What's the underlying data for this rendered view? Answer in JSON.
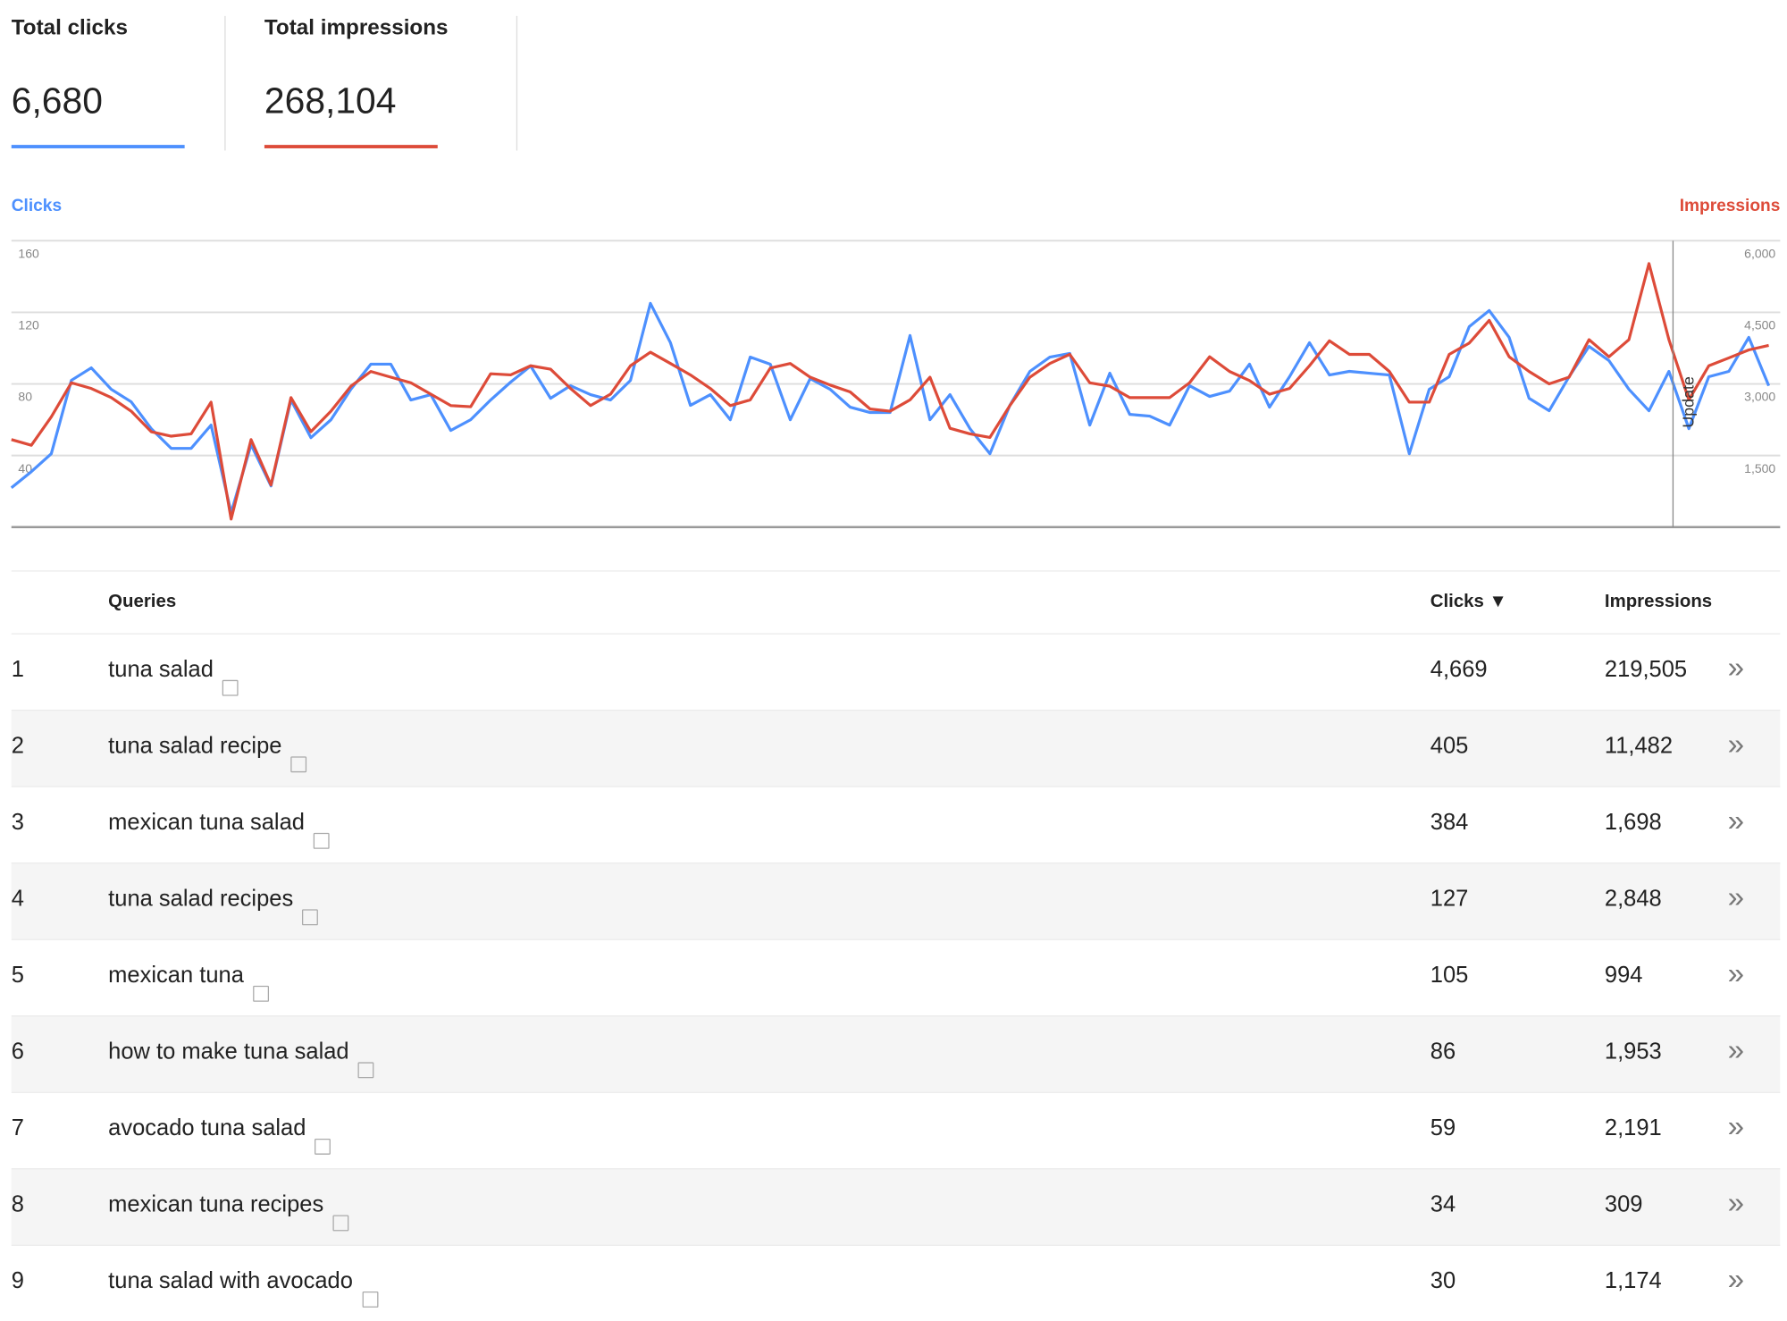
{
  "summary": [
    {
      "label": "Total clicks",
      "value": "6,680",
      "color": "#4d90fe"
    },
    {
      "label": "Total impressions",
      "value": "268,104",
      "color": "#dd4b39"
    }
  ],
  "chart_data": {
    "type": "line",
    "y_label": "Clicks",
    "y2_label": "Impressions",
    "annotation": "Update",
    "ylim": [
      0,
      160
    ],
    "yticks": [
      40,
      80,
      120,
      160
    ],
    "y2lim": [
      0,
      6000
    ],
    "y2ticks": [
      {
        "value": 1500,
        "label": "1,500"
      },
      {
        "value": 3000,
        "label": "3,000"
      },
      {
        "value": 4500,
        "label": "4,500"
      },
      {
        "value": 6000,
        "label": "6,000"
      }
    ],
    "grid": true,
    "series": [
      {
        "name": "Clicks",
        "color": "#4d90fe",
        "values": [
          22,
          31,
          41,
          82,
          89,
          77,
          70,
          55,
          44,
          44,
          57,
          8,
          46,
          23,
          71,
          50,
          60,
          77,
          91,
          91,
          71,
          74,
          54,
          60,
          71,
          81,
          90,
          72,
          79,
          74,
          71,
          82,
          125,
          103,
          68,
          74,
          60,
          95,
          91,
          60,
          83,
          77,
          67,
          64,
          64,
          107,
          60,
          74,
          55,
          41,
          68,
          87,
          95,
          97,
          57,
          86,
          63,
          62,
          57,
          79,
          73,
          76,
          91,
          67,
          84,
          103,
          85,
          87,
          86,
          85,
          41,
          77,
          84,
          112,
          121,
          106,
          72,
          65,
          84,
          101,
          93,
          77,
          65,
          87,
          55,
          84,
          87,
          106,
          79
        ]
      },
      {
        "name": "Impressions",
        "color": "#dd4b39",
        "axis": "y2",
        "values": [
          1833,
          1714,
          2309,
          3023,
          2904,
          2713,
          2428,
          1999,
          1904,
          1952,
          2618,
          167,
          1833,
          881,
          2713,
          1999,
          2428,
          2951,
          3261,
          3142,
          3023,
          2785,
          2547,
          2523,
          3213,
          3189,
          3380,
          3308,
          2904,
          2547,
          2785,
          3380,
          3665,
          3427,
          3189,
          2904,
          2547,
          2666,
          3332,
          3427,
          3142,
          2975,
          2832,
          2475,
          2428,
          2666,
          3142,
          2071,
          1952,
          1880,
          2547,
          3142,
          3427,
          3618,
          3023,
          2951,
          2713,
          2713,
          2713,
          3023,
          3570,
          3261,
          3070,
          2785,
          2904,
          3380,
          3903,
          3618,
          3618,
          3261,
          2618,
          2618,
          3618,
          3856,
          4332,
          3570,
          3261,
          2999,
          3142,
          3927,
          3570,
          3927,
          5522,
          3927,
          2666,
          3380,
          3546,
          3713,
          3808
        ]
      }
    ]
  },
  "table": {
    "headers": [
      "Queries",
      "Clicks",
      "Impressions"
    ],
    "rows": [
      [
        "1",
        "tuna salad",
        "4,669",
        "219,505"
      ],
      [
        "2",
        "tuna salad recipe",
        "405",
        "11,482"
      ],
      [
        "3",
        "mexican tuna salad",
        "384",
        "1,698"
      ],
      [
        "4",
        "tuna salad recipes",
        "127",
        "2,848"
      ],
      [
        "5",
        "mexican tuna",
        "105",
        "994"
      ],
      [
        "6",
        "how to make tuna salad",
        "86",
        "1,953"
      ],
      [
        "7",
        "avocado tuna salad",
        "59",
        "2,191"
      ],
      [
        "8",
        "mexican tuna recipes",
        "34",
        "309"
      ],
      [
        "9",
        "tuna salad with avocado",
        "30",
        "1,174"
      ]
    ]
  }
}
